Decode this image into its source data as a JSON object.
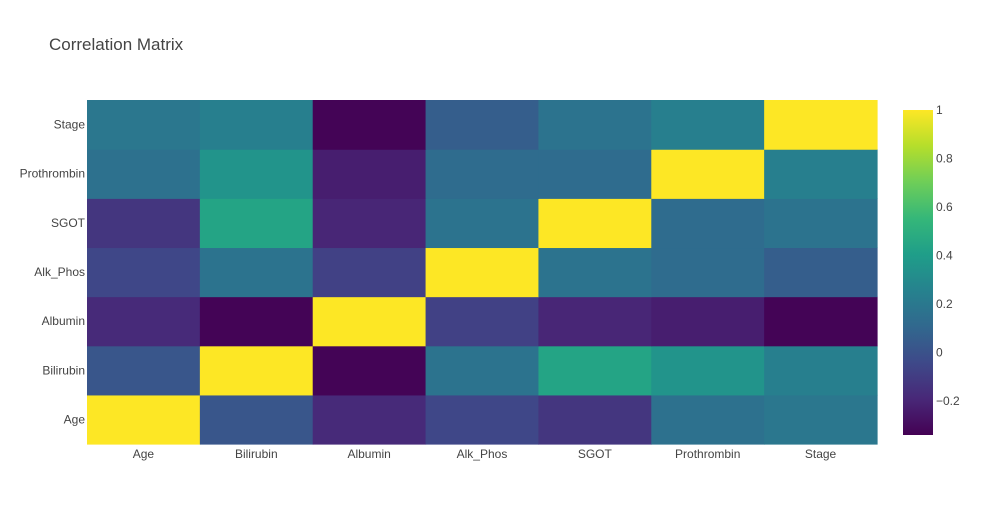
{
  "chart_data": {
    "type": "heatmap",
    "title": "Correlation Matrix",
    "x": [
      "Age",
      "Bilirubin",
      "Albumin",
      "Alk_Phos",
      "SGOT",
      "Prothrombin",
      "Stage"
    ],
    "y": [
      "Age",
      "Bilirubin",
      "Albumin",
      "Alk_Phos",
      "SGOT",
      "Prothrombin",
      "Stage"
    ],
    "z": [
      [
        1.0,
        0.02,
        -0.18,
        -0.05,
        -0.13,
        0.16,
        0.19
      ],
      [
        0.02,
        1.0,
        -0.33,
        0.17,
        0.44,
        0.35,
        0.24
      ],
      [
        -0.18,
        -0.33,
        1.0,
        -0.08,
        -0.2,
        -0.23,
        -0.33
      ],
      [
        -0.05,
        0.17,
        -0.08,
        1.0,
        0.17,
        0.13,
        0.06
      ],
      [
        -0.13,
        0.44,
        -0.2,
        0.17,
        1.0,
        0.13,
        0.17
      ],
      [
        0.16,
        0.35,
        -0.23,
        0.13,
        0.13,
        1.0,
        0.24
      ],
      [
        0.19,
        0.24,
        -0.33,
        0.06,
        0.17,
        0.24,
        1.0
      ]
    ],
    "zmin": -0.34,
    "zmax": 1.0,
    "colorscale": "Viridis",
    "colorbar": {
      "tickvals": [
        1,
        0.8,
        0.6,
        0.4,
        0.2,
        0,
        -0.2
      ],
      "ticktext": [
        "1",
        "0.8",
        "0.6",
        "0.4",
        "0.2",
        "0",
        "−0.2"
      ]
    },
    "grid": false
  },
  "colors": {
    "background": "#ffffff",
    "text": "#444444",
    "viridis": [
      "#440154",
      "#482878",
      "#3e4989",
      "#31688e",
      "#26828e",
      "#1f9e89",
      "#35b779",
      "#6ece58",
      "#b5de2b",
      "#fde725"
    ]
  }
}
